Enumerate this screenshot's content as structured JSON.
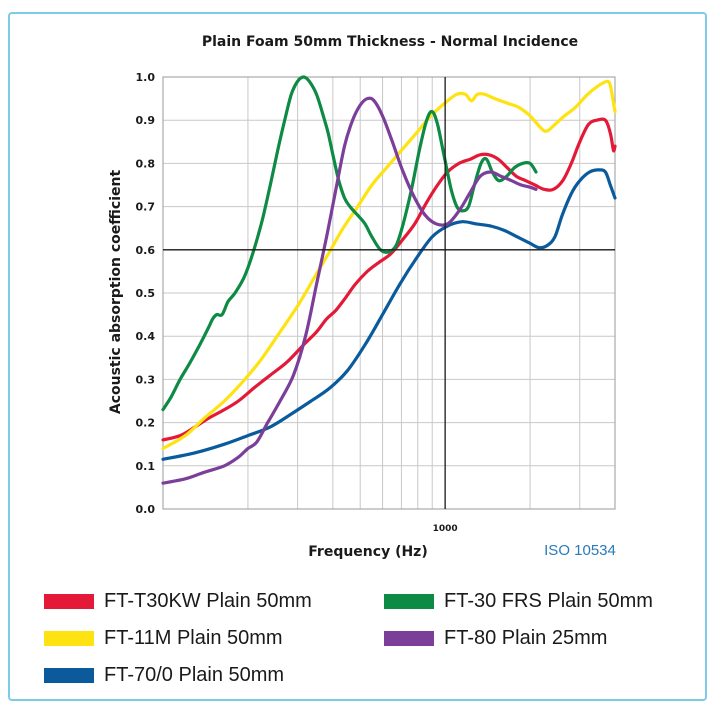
{
  "chart_data": {
    "type": "line",
    "title": "Plain Foam 50mm Thickness - Normal Incidence",
    "xlabel": "Frequency (Hz)",
    "ylabel": "Acoustic absorption coefficient",
    "x_scale": "log",
    "xlim": [
      100,
      4000
    ],
    "ylim": [
      0,
      1.0
    ],
    "x_tick_labels": [
      {
        "value": 1000,
        "label": "1000"
      }
    ],
    "y_ticks": [
      {
        "value": 0.0,
        "label": "0.0"
      },
      {
        "value": 0.1,
        "label": "0.1"
      },
      {
        "value": 0.2,
        "label": "0.2"
      },
      {
        "value": 0.3,
        "label": "0.3"
      },
      {
        "value": 0.4,
        "label": "0.4"
      },
      {
        "value": 0.5,
        "label": "0.5"
      },
      {
        "value": 0.6,
        "label": "0.6"
      },
      {
        "value": 0.7,
        "label": "0.7"
      },
      {
        "value": 0.8,
        "label": "0.8"
      },
      {
        "value": 0.9,
        "label": "0.9"
      },
      {
        "value": 1.0,
        "label": "1.0"
      }
    ],
    "grid": true,
    "reference_lines": {
      "x": 1000,
      "y": 0.6
    },
    "annotation": "ISO 10534",
    "legend_position": "bottom",
    "series": [
      {
        "name": "FT-T30KW Plain 50mm",
        "color": "#e31937",
        "points": [
          [
            100,
            0.16
          ],
          [
            115,
            0.17
          ],
          [
            130,
            0.19
          ],
          [
            145,
            0.21
          ],
          [
            165,
            0.23
          ],
          [
            185,
            0.25
          ],
          [
            210,
            0.28
          ],
          [
            240,
            0.31
          ],
          [
            275,
            0.34
          ],
          [
            315,
            0.38
          ],
          [
            350,
            0.41
          ],
          [
            380,
            0.44
          ],
          [
            410,
            0.46
          ],
          [
            445,
            0.49
          ],
          [
            480,
            0.52
          ],
          [
            530,
            0.55
          ],
          [
            580,
            0.57
          ],
          [
            640,
            0.59
          ],
          [
            700,
            0.62
          ],
          [
            780,
            0.66
          ],
          [
            860,
            0.71
          ],
          [
            940,
            0.75
          ],
          [
            1020,
            0.78
          ],
          [
            1120,
            0.8
          ],
          [
            1230,
            0.81
          ],
          [
            1330,
            0.82
          ],
          [
            1430,
            0.82
          ],
          [
            1540,
            0.81
          ],
          [
            1660,
            0.79
          ],
          [
            1790,
            0.77
          ],
          [
            1930,
            0.76
          ],
          [
            2080,
            0.75
          ],
          [
            2240,
            0.74
          ],
          [
            2420,
            0.74
          ],
          [
            2610,
            0.76
          ],
          [
            2800,
            0.8
          ],
          [
            3000,
            0.85
          ],
          [
            3220,
            0.89
          ],
          [
            3450,
            0.9
          ],
          [
            3700,
            0.9
          ],
          [
            3850,
            0.87
          ],
          [
            3950,
            0.83
          ],
          [
            4000,
            0.84
          ]
        ]
      },
      {
        "name": "FT-11M Plain 50mm",
        "color": "#ffe212",
        "points": [
          [
            100,
            0.14
          ],
          [
            120,
            0.17
          ],
          [
            140,
            0.21
          ],
          [
            165,
            0.25
          ],
          [
            195,
            0.3
          ],
          [
            225,
            0.35
          ],
          [
            260,
            0.41
          ],
          [
            300,
            0.47
          ],
          [
            340,
            0.53
          ],
          [
            385,
            0.59
          ],
          [
            435,
            0.65
          ],
          [
            490,
            0.7
          ],
          [
            550,
            0.75
          ],
          [
            620,
            0.79
          ],
          [
            700,
            0.83
          ],
          [
            790,
            0.87
          ],
          [
            890,
            0.91
          ],
          [
            1000,
            0.94
          ],
          [
            1100,
            0.96
          ],
          [
            1180,
            0.96
          ],
          [
            1240,
            0.945
          ],
          [
            1300,
            0.96
          ],
          [
            1380,
            0.96
          ],
          [
            1500,
            0.95
          ],
          [
            1650,
            0.94
          ],
          [
            1820,
            0.93
          ],
          [
            2000,
            0.91
          ],
          [
            2200,
            0.88
          ],
          [
            2300,
            0.875
          ],
          [
            2450,
            0.89
          ],
          [
            2650,
            0.91
          ],
          [
            2900,
            0.93
          ],
          [
            3200,
            0.96
          ],
          [
            3500,
            0.98
          ],
          [
            3750,
            0.99
          ],
          [
            3850,
            0.98
          ],
          [
            3950,
            0.94
          ],
          [
            4000,
            0.92
          ]
        ]
      },
      {
        "name": "FT-70/0 Plain 50mm",
        "color": "#0a5a9c",
        "points": [
          [
            100,
            0.115
          ],
          [
            130,
            0.13
          ],
          [
            165,
            0.15
          ],
          [
            200,
            0.17
          ],
          [
            240,
            0.19
          ],
          [
            285,
            0.22
          ],
          [
            335,
            0.25
          ],
          [
            390,
            0.28
          ],
          [
            450,
            0.32
          ],
          [
            520,
            0.38
          ],
          [
            600,
            0.45
          ],
          [
            690,
            0.52
          ],
          [
            790,
            0.58
          ],
          [
            900,
            0.63
          ],
          [
            1020,
            0.655
          ],
          [
            1150,
            0.665
          ],
          [
            1290,
            0.66
          ],
          [
            1450,
            0.655
          ],
          [
            1620,
            0.645
          ],
          [
            1800,
            0.63
          ],
          [
            2000,
            0.615
          ],
          [
            2150,
            0.605
          ],
          [
            2300,
            0.61
          ],
          [
            2450,
            0.63
          ],
          [
            2600,
            0.68
          ],
          [
            2800,
            0.73
          ],
          [
            3000,
            0.76
          ],
          [
            3250,
            0.78
          ],
          [
            3500,
            0.785
          ],
          [
            3700,
            0.78
          ],
          [
            3850,
            0.75
          ],
          [
            4000,
            0.72
          ]
        ]
      },
      {
        "name": "FT-30 FRS Plain 50mm",
        "color": "#0d8a43",
        "points": [
          [
            100,
            0.23
          ],
          [
            107,
            0.26
          ],
          [
            115,
            0.3
          ],
          [
            125,
            0.34
          ],
          [
            135,
            0.38
          ],
          [
            145,
            0.42
          ],
          [
            150,
            0.44
          ],
          [
            155,
            0.45
          ],
          [
            162,
            0.45
          ],
          [
            170,
            0.48
          ],
          [
            180,
            0.5
          ],
          [
            195,
            0.54
          ],
          [
            210,
            0.6
          ],
          [
            225,
            0.67
          ],
          [
            240,
            0.75
          ],
          [
            255,
            0.83
          ],
          [
            270,
            0.9
          ],
          [
            285,
            0.96
          ],
          [
            300,
            0.99
          ],
          [
            315,
            1.0
          ],
          [
            330,
            0.99
          ],
          [
            350,
            0.96
          ],
          [
            370,
            0.91
          ],
          [
            385,
            0.87
          ],
          [
            400,
            0.82
          ],
          [
            420,
            0.76
          ],
          [
            440,
            0.72
          ],
          [
            460,
            0.7
          ],
          [
            490,
            0.68
          ],
          [
            520,
            0.66
          ],
          [
            550,
            0.63
          ],
          [
            590,
            0.6
          ],
          [
            630,
            0.595
          ],
          [
            670,
            0.61
          ],
          [
            710,
            0.66
          ],
          [
            760,
            0.74
          ],
          [
            810,
            0.83
          ],
          [
            860,
            0.9
          ],
          [
            900,
            0.92
          ],
          [
            940,
            0.89
          ],
          [
            990,
            0.82
          ],
          [
            1050,
            0.74
          ],
          [
            1100,
            0.7
          ],
          [
            1150,
            0.69
          ],
          [
            1210,
            0.7
          ],
          [
            1270,
            0.75
          ],
          [
            1340,
            0.8
          ],
          [
            1400,
            0.81
          ],
          [
            1470,
            0.78
          ],
          [
            1550,
            0.76
          ],
          [
            1650,
            0.77
          ],
          [
            1760,
            0.79
          ],
          [
            1880,
            0.8
          ],
          [
            2000,
            0.8
          ],
          [
            2100,
            0.78
          ]
        ]
      },
      {
        "name": "FT-80 Plain 25mm",
        "color": "#7b3f99",
        "points": [
          [
            100,
            0.06
          ],
          [
            120,
            0.07
          ],
          [
            140,
            0.085
          ],
          [
            165,
            0.1
          ],
          [
            185,
            0.12
          ],
          [
            200,
            0.14
          ],
          [
            215,
            0.155
          ],
          [
            235,
            0.2
          ],
          [
            260,
            0.25
          ],
          [
            290,
            0.31
          ],
          [
            320,
            0.4
          ],
          [
            350,
            0.52
          ],
          [
            380,
            0.63
          ],
          [
            410,
            0.74
          ],
          [
            440,
            0.84
          ],
          [
            470,
            0.9
          ],
          [
            500,
            0.935
          ],
          [
            530,
            0.95
          ],
          [
            560,
            0.945
          ],
          [
            600,
            0.91
          ],
          [
            650,
            0.85
          ],
          [
            710,
            0.78
          ],
          [
            780,
            0.72
          ],
          [
            850,
            0.68
          ],
          [
            930,
            0.66
          ],
          [
            1020,
            0.66
          ],
          [
            1120,
            0.69
          ],
          [
            1220,
            0.73
          ],
          [
            1330,
            0.77
          ],
          [
            1450,
            0.78
          ],
          [
            1580,
            0.77
          ],
          [
            1720,
            0.76
          ],
          [
            1860,
            0.75
          ],
          [
            2000,
            0.745
          ],
          [
            2100,
            0.74
          ]
        ]
      }
    ]
  }
}
